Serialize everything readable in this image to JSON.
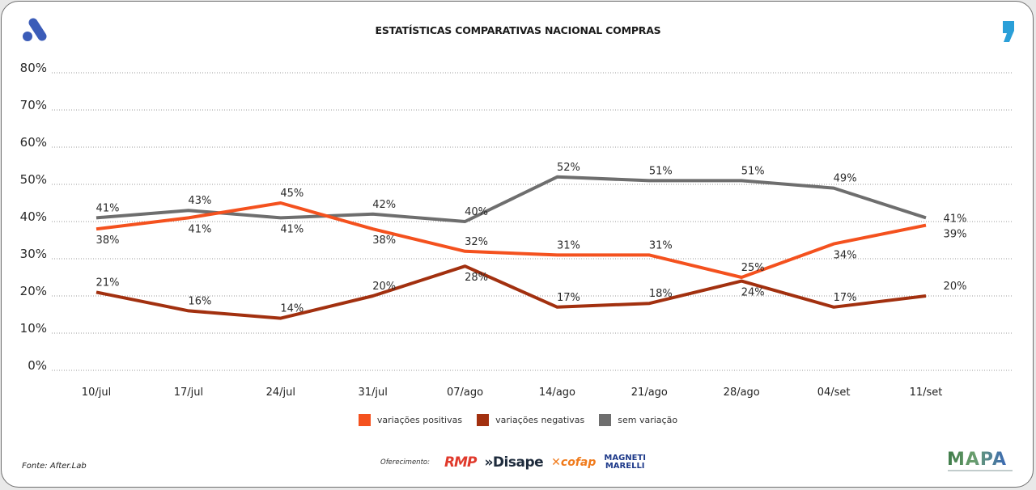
{
  "header": {
    "title": "ESTATÍSTICAS COMPARATIVAS NACIONAL COMPRAS",
    "logo_left": "afterlab-a-logo",
    "logo_right": "comma-logo"
  },
  "colors": {
    "positive": "#f4511e",
    "negative": "#a2300f",
    "neutral": "#6e6e6e",
    "logo_left": "#3b5cb8",
    "logo_right": "#2a9fd8"
  },
  "chart_data": {
    "type": "line",
    "title": "ESTATÍSTICAS COMPARATIVAS NACIONAL COMPRAS",
    "xlabel": "",
    "ylabel": "",
    "categories": [
      "10/jul",
      "17/jul",
      "24/jul",
      "31/jul",
      "07/ago",
      "14/ago",
      "21/ago",
      "28/ago",
      "04/set",
      "11/set"
    ],
    "yticks": [
      "0%",
      "10%",
      "20%",
      "30%",
      "40%",
      "50%",
      "60%",
      "70%",
      "80%"
    ],
    "ylim": [
      0,
      80
    ],
    "grid": true,
    "legend_position": "bottom-center",
    "series": [
      {
        "name": "variações positivas",
        "color": "#f4511e",
        "values": [
          38,
          41,
          45,
          38,
          32,
          31,
          31,
          25,
          34,
          39
        ],
        "labels": [
          "38%",
          "41%",
          "45%",
          "38%",
          "32%",
          "31%",
          "31%",
          "25%",
          "34%",
          "39%"
        ]
      },
      {
        "name": "variações negativas",
        "color": "#a2300f",
        "values": [
          21,
          16,
          14,
          20,
          28,
          17,
          18,
          24,
          17,
          20
        ],
        "labels": [
          "21%",
          "16%",
          "14%",
          "20%",
          "28%",
          "17%",
          "18%",
          "24%",
          "17%",
          "20%"
        ]
      },
      {
        "name": "sem variação",
        "color": "#6e6e6e",
        "values": [
          41,
          43,
          41,
          42,
          40,
          52,
          51,
          51,
          49,
          41
        ],
        "labels": [
          "41%",
          "43%",
          "41%",
          "42%",
          "40%",
          "52%",
          "51%",
          "51%",
          "49%",
          "41%"
        ]
      }
    ]
  },
  "legend": [
    {
      "label": "variações positivas",
      "color": "#f4511e"
    },
    {
      "label": "variações negativas",
      "color": "#a2300f"
    },
    {
      "label": "sem variação",
      "color": "#6e6e6e"
    }
  ],
  "footer": {
    "source": "Fonte: After.Lab",
    "sponsor_label": "Oferecimento:",
    "sponsors": [
      "RMP",
      "»Disape",
      "cofap",
      "MAGNETI",
      "MARELLI"
    ],
    "brand": "MAPA"
  }
}
